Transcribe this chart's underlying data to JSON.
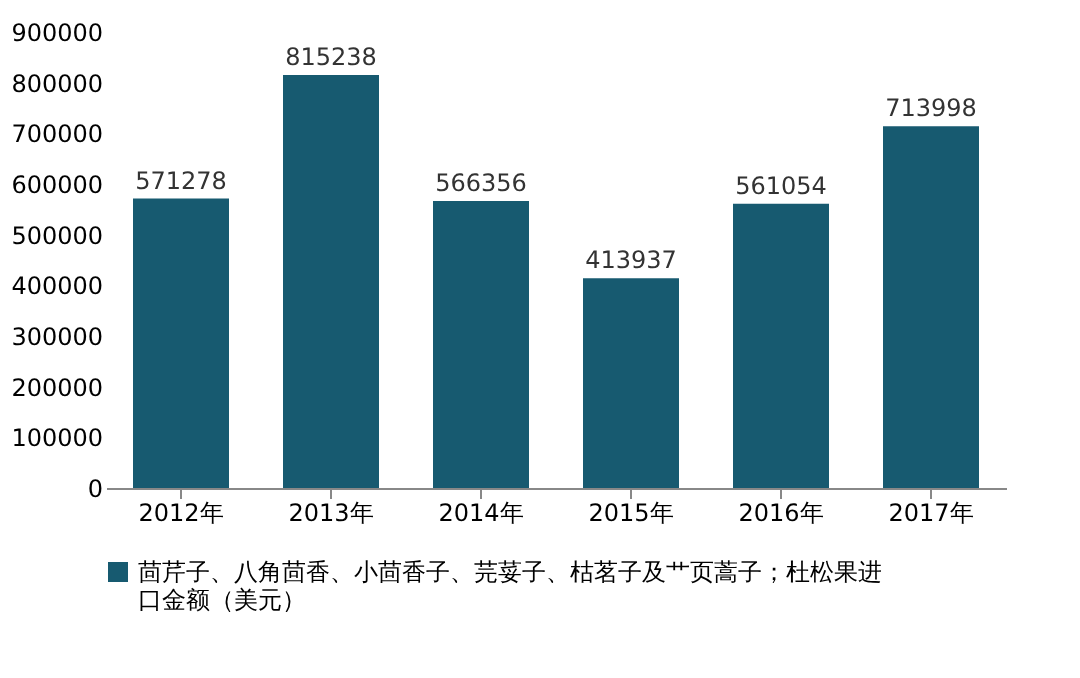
{
  "chart_data": {
    "type": "bar",
    "categories": [
      "2012年",
      "2013年",
      "2014年",
      "2015年",
      "2016年",
      "2017年"
    ],
    "series": [
      {
        "name": "茴芹子、八角茴香、小茴香子、芫荽子、枯茗子及艹页蒿子；杜松果进口金额（美元）",
        "color": "#175a70",
        "values": [
          571278,
          815238,
          566356,
          413937,
          561054,
          713998
        ]
      }
    ],
    "ylim": [
      0,
      900000
    ],
    "yticks": [
      0,
      100000,
      200000,
      300000,
      400000,
      500000,
      600000,
      700000,
      800000,
      900000
    ],
    "data_labels": true,
    "grid": false,
    "legend": "bottom"
  }
}
